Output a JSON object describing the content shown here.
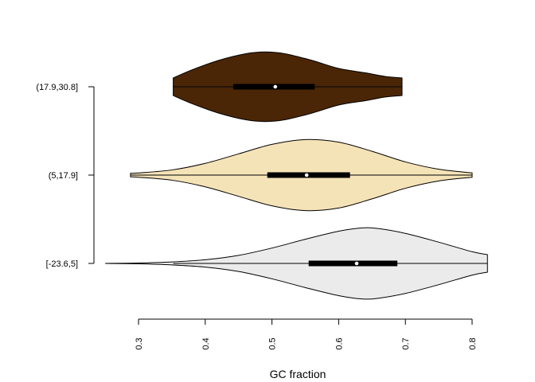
{
  "chart_data": {
    "type": "violin",
    "orientation": "horizontal",
    "title": "",
    "xlabel": "GC fraction",
    "ylabel": "",
    "xlim": [
      0.25,
      0.83
    ],
    "xticks": [
      0.3,
      0.4,
      0.5,
      0.6,
      0.7,
      0.8
    ],
    "xtick_labels": [
      "0.3",
      "0.4",
      "0.5",
      "0.6",
      "0.7",
      "0.8"
    ],
    "grid": false,
    "legend": "none",
    "categories": [
      "[-23.6,5]",
      "(5,17.9]",
      "(17.9,30.8]"
    ],
    "series": [
      {
        "category": "[-23.6,5]",
        "color": "#ebebeb",
        "min": 0.25,
        "q1": 0.555,
        "median": 0.627,
        "q3": 0.688,
        "max": 0.823,
        "whisker_low": 0.352,
        "whisker_high": 0.823,
        "density": [
          [
            0.25,
            0.0
          ],
          [
            0.3,
            0.01
          ],
          [
            0.35,
            0.04
          ],
          [
            0.4,
            0.1
          ],
          [
            0.45,
            0.22
          ],
          [
            0.5,
            0.42
          ],
          [
            0.55,
            0.66
          ],
          [
            0.6,
            0.88
          ],
          [
            0.635,
            0.97
          ],
          [
            0.66,
            0.95
          ],
          [
            0.7,
            0.82
          ],
          [
            0.75,
            0.58
          ],
          [
            0.8,
            0.32
          ],
          [
            0.823,
            0.24
          ]
        ]
      },
      {
        "category": "(5,17.9]",
        "color": "#f5e3b8",
        "min": 0.288,
        "q1": 0.493,
        "median": 0.552,
        "q3": 0.617,
        "max": 0.8,
        "whisker_low": 0.288,
        "whisker_high": 0.8,
        "density": [
          [
            0.288,
            0.05
          ],
          [
            0.3,
            0.06
          ],
          [
            0.35,
            0.14
          ],
          [
            0.4,
            0.32
          ],
          [
            0.45,
            0.58
          ],
          [
            0.5,
            0.84
          ],
          [
            0.55,
            0.97
          ],
          [
            0.6,
            0.9
          ],
          [
            0.65,
            0.65
          ],
          [
            0.7,
            0.36
          ],
          [
            0.75,
            0.16
          ],
          [
            0.8,
            0.06
          ]
        ]
      },
      {
        "category": "(17.9,30.8]",
        "color": "#4a2606",
        "min": 0.352,
        "q1": 0.442,
        "median": 0.505,
        "q3": 0.564,
        "max": 0.695,
        "whisker_low": 0.352,
        "whisker_high": 0.695,
        "density": [
          [
            0.352,
            0.24
          ],
          [
            0.38,
            0.46
          ],
          [
            0.42,
            0.72
          ],
          [
            0.46,
            0.9
          ],
          [
            0.49,
            0.95
          ],
          [
            0.52,
            0.9
          ],
          [
            0.56,
            0.72
          ],
          [
            0.6,
            0.5
          ],
          [
            0.64,
            0.38
          ],
          [
            0.67,
            0.28
          ],
          [
            0.695,
            0.24
          ]
        ]
      }
    ]
  }
}
